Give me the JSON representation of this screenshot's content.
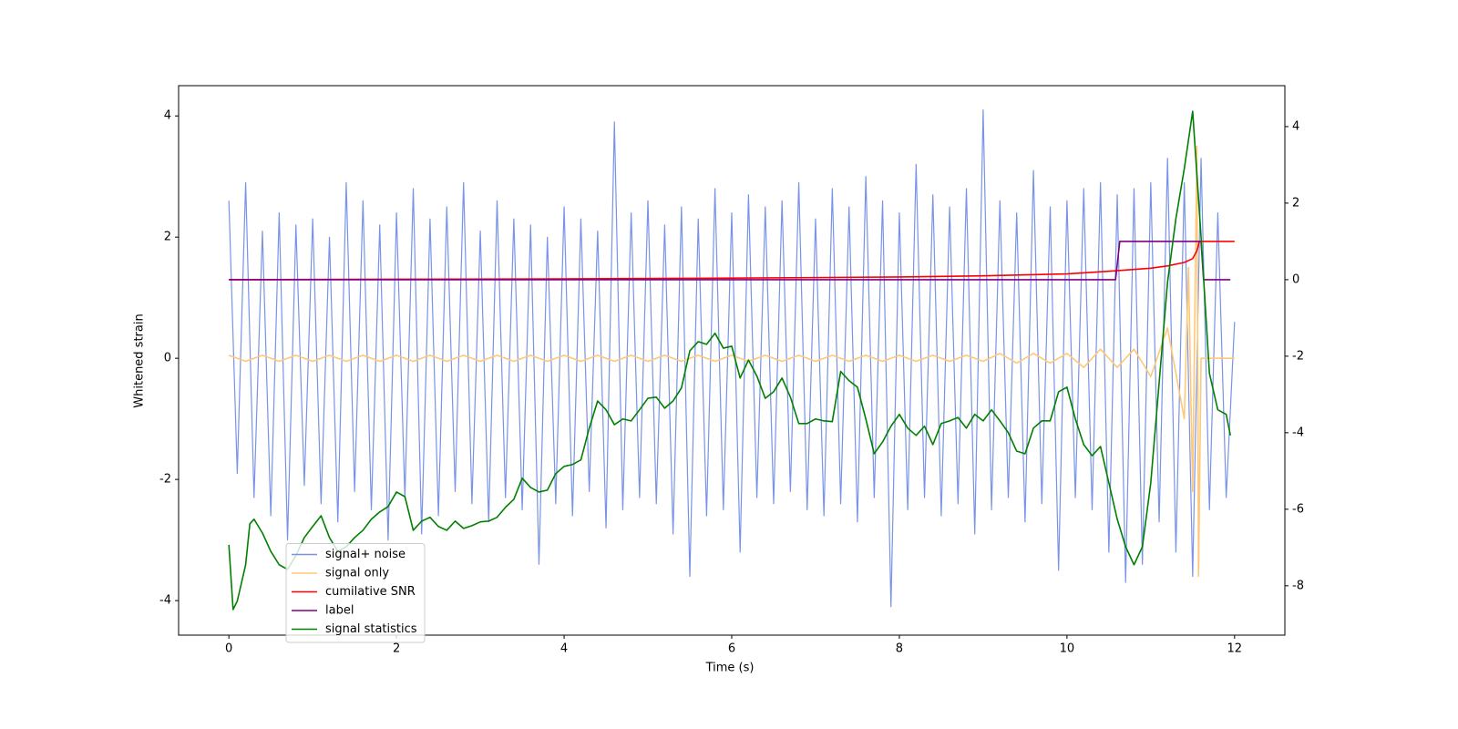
{
  "chart_data": {
    "type": "line",
    "xlabel": "Time (s)",
    "ylabel": "Whitened strain",
    "xlim": [
      -0.6,
      12.6
    ],
    "ylim": [
      -4.57,
      4.5
    ],
    "y2lim": [
      -9.29,
      5.07
    ],
    "xticks": [
      0,
      2,
      4,
      6,
      8,
      10,
      12
    ],
    "yticks": [
      -4,
      -2,
      0,
      2,
      4
    ],
    "y2ticks": [
      -8,
      -6,
      -4,
      -2,
      0,
      2,
      4
    ],
    "legend": "lower left",
    "series": [
      {
        "name": "signal+ noise",
        "color": "#7893e8",
        "x": [
          0,
          0.1,
          0.2,
          0.3,
          0.4,
          0.5,
          0.6,
          0.7,
          0.8,
          0.9,
          1,
          1.1,
          1.2,
          1.3,
          1.4,
          1.5,
          1.6,
          1.7,
          1.8,
          1.9,
          2,
          2.1,
          2.2,
          2.3,
          2.4,
          2.5,
          2.6,
          2.7,
          2.8,
          2.9,
          3,
          3.1,
          3.2,
          3.3,
          3.4,
          3.5,
          3.6,
          3.7,
          3.8,
          3.9,
          4,
          4.1,
          4.2,
          4.3,
          4.4,
          4.5,
          4.6,
          4.7,
          4.8,
          4.9,
          5,
          5.1,
          5.2,
          5.3,
          5.4,
          5.5,
          5.6,
          5.7,
          5.8,
          5.9,
          6,
          6.1,
          6.2,
          6.3,
          6.4,
          6.5,
          6.6,
          6.7,
          6.8,
          6.9,
          7,
          7.1,
          7.2,
          7.3,
          7.4,
          7.5,
          7.6,
          7.7,
          7.8,
          7.9,
          8,
          8.1,
          8.2,
          8.3,
          8.4,
          8.5,
          8.6,
          8.7,
          8.8,
          8.9,
          9,
          9.1,
          9.2,
          9.3,
          9.4,
          9.5,
          9.6,
          9.7,
          9.8,
          9.9,
          10,
          10.1,
          10.2,
          10.3,
          10.4,
          10.5,
          10.6,
          10.7,
          10.8,
          10.9,
          11,
          11.1,
          11.2,
          11.3,
          11.4,
          11.5,
          11.6,
          11.7,
          11.8,
          11.9,
          12
        ],
        "values": [
          2.6,
          -1.9,
          2.9,
          -2.3,
          2.1,
          -2.6,
          2.4,
          -3.0,
          2.2,
          -2.1,
          2.3,
          -2.4,
          2.0,
          -2.7,
          2.9,
          -2.2,
          2.6,
          -2.5,
          2.2,
          -3.0,
          2.4,
          -2.3,
          2.8,
          -2.9,
          2.3,
          -2.6,
          2.5,
          -2.2,
          2.9,
          -2.4,
          2.1,
          -2.7,
          2.6,
          -2.3,
          2.3,
          -2.5,
          2.2,
          -3.4,
          2.0,
          -2.4,
          2.5,
          -2.6,
          2.3,
          -2.2,
          2.1,
          -2.8,
          3.9,
          -2.5,
          2.4,
          -2.3,
          2.6,
          -2.4,
          2.2,
          -2.9,
          2.5,
          -3.6,
          2.3,
          -2.6,
          2.8,
          -2.5,
          2.4,
          -3.2,
          2.7,
          -2.3,
          2.5,
          -2.4,
          2.6,
          -2.2,
          2.9,
          -2.5,
          2.3,
          -2.6,
          2.8,
          -2.4,
          2.5,
          -2.7,
          3.0,
          -2.3,
          2.6,
          -4.1,
          2.4,
          -2.5,
          3.2,
          -2.3,
          2.7,
          -2.6,
          2.5,
          -2.4,
          2.8,
          -2.9,
          4.1,
          -2.5,
          2.6,
          -2.3,
          2.4,
          -2.7,
          3.1,
          -2.4,
          2.5,
          -3.5,
          2.6,
          -2.3,
          2.8,
          -2.5,
          2.9,
          -3.2,
          2.7,
          -3.7,
          2.8,
          -3.4,
          2.9,
          -2.7,
          3.3,
          -3.2,
          2.9,
          -3.6,
          3.3,
          -2.5,
          2.4,
          -2.3,
          0.6
        ]
      },
      {
        "name": "signal only",
        "color": "#ffc878",
        "x": [
          0,
          0.2,
          0.4,
          0.6,
          0.8,
          1,
          1.2,
          1.4,
          1.6,
          1.8,
          2,
          2.2,
          2.4,
          2.6,
          2.8,
          3,
          3.2,
          3.4,
          3.6,
          3.8,
          4,
          4.2,
          4.4,
          4.6,
          4.8,
          5,
          5.2,
          5.4,
          5.6,
          5.8,
          6,
          6.2,
          6.4,
          6.6,
          6.8,
          7,
          7.2,
          7.4,
          7.6,
          7.8,
          8,
          8.2,
          8.4,
          8.6,
          8.8,
          9,
          9.2,
          9.4,
          9.6,
          9.8,
          10,
          10.2,
          10.4,
          10.6,
          10.8,
          11,
          11.2,
          11.4,
          11.45,
          11.5,
          11.55,
          11.57,
          11.6,
          12
        ],
        "values": [
          0.05,
          -0.05,
          0.05,
          -0.05,
          0.05,
          -0.05,
          0.05,
          -0.05,
          0.05,
          -0.05,
          0.05,
          -0.05,
          0.05,
          -0.05,
          0.05,
          -0.05,
          0.05,
          -0.05,
          0.05,
          -0.05,
          0.05,
          -0.05,
          0.05,
          -0.05,
          0.05,
          -0.05,
          0.05,
          -0.05,
          0.05,
          -0.05,
          0.05,
          -0.05,
          0.05,
          -0.05,
          0.05,
          -0.05,
          0.05,
          -0.05,
          0.05,
          -0.05,
          0.05,
          -0.05,
          0.05,
          -0.05,
          0.05,
          -0.05,
          0.08,
          -0.08,
          0.08,
          -0.08,
          0.08,
          -0.15,
          0.15,
          -0.15,
          0.15,
          -0.3,
          0.5,
          -1.0,
          1.5,
          -2.2,
          3.5,
          -3.6,
          0,
          0
        ]
      },
      {
        "name": "cumilative SNR",
        "color": "#ff0000",
        "axis": "y2",
        "x": [
          0,
          2,
          4,
          6,
          8,
          9,
          10,
          10.5,
          11,
          11.2,
          11.4,
          11.5,
          11.55,
          11.58,
          12
        ],
        "values": [
          0,
          0.01,
          0.02,
          0.04,
          0.07,
          0.1,
          0.15,
          0.22,
          0.3,
          0.36,
          0.45,
          0.55,
          0.75,
          1,
          1
        ]
      },
      {
        "name": "label",
        "color": "#800080",
        "axis": "y2",
        "x": [
          0,
          10.58,
          10.63,
          11.6,
          11.63,
          11.95
        ],
        "values": [
          0,
          0,
          1,
          1,
          0,
          0
        ]
      },
      {
        "name": "signal statistics",
        "color": "#008000",
        "axis": "y2",
        "x": [
          0,
          0.05,
          0.1,
          0.2,
          0.25,
          0.3,
          0.4,
          0.5,
          0.6,
          0.7,
          0.8,
          0.9,
          1,
          1.1,
          1.2,
          1.3,
          1.4,
          1.5,
          1.6,
          1.7,
          1.8,
          1.9,
          2,
          2.1,
          2.2,
          2.3,
          2.4,
          2.5,
          2.6,
          2.7,
          2.8,
          2.9,
          3,
          3.1,
          3.2,
          3.3,
          3.4,
          3.5,
          3.6,
          3.7,
          3.8,
          3.9,
          4,
          4.1,
          4.2,
          4.3,
          4.4,
          4.5,
          4.6,
          4.7,
          4.8,
          4.9,
          5,
          5.1,
          5.2,
          5.3,
          5.4,
          5.5,
          5.6,
          5.7,
          5.8,
          5.9,
          6,
          6.1,
          6.2,
          6.3,
          6.4,
          6.5,
          6.6,
          6.7,
          6.8,
          6.9,
          7,
          7.1,
          7.2,
          7.3,
          7.4,
          7.5,
          7.6,
          7.7,
          7.8,
          7.9,
          8,
          8.1,
          8.2,
          8.3,
          8.4,
          8.5,
          8.6,
          8.7,
          8.8,
          8.9,
          9,
          9.1,
          9.2,
          9.3,
          9.4,
          9.5,
          9.6,
          9.7,
          9.8,
          9.9,
          10,
          10.1,
          10.2,
          10.3,
          10.4,
          10.5,
          10.6,
          10.7,
          10.8,
          10.9,
          11,
          11.1,
          11.2,
          11.3,
          11.4,
          11.5,
          11.6,
          11.7,
          11.8,
          11.9,
          11.95
        ],
        "values": [
          -6.93,
          -8.62,
          -8.4,
          -7.45,
          -6.38,
          -6.26,
          -6.62,
          -7.1,
          -7.45,
          -7.57,
          -7.21,
          -6.74,
          -6.45,
          -6.17,
          -6.74,
          -7.1,
          -6.98,
          -6.74,
          -6.55,
          -6.26,
          -6.07,
          -5.93,
          -5.55,
          -5.67,
          -6.55,
          -6.31,
          -6.21,
          -6.45,
          -6.55,
          -6.31,
          -6.5,
          -6.43,
          -6.33,
          -6.31,
          -6.21,
          -5.95,
          -5.74,
          -5.19,
          -5.43,
          -5.55,
          -5.5,
          -5.07,
          -4.88,
          -4.83,
          -4.71,
          -3.88,
          -3.17,
          -3.4,
          -3.79,
          -3.64,
          -3.69,
          -3.4,
          -3.1,
          -3.07,
          -3.36,
          -3.17,
          -2.83,
          -1.86,
          -1.62,
          -1.69,
          -1.4,
          -1.79,
          -1.74,
          -2.57,
          -2.1,
          -2.52,
          -3.1,
          -2.93,
          -2.57,
          -3.07,
          -3.76,
          -3.76,
          -3.64,
          -3.69,
          -3.71,
          -2.4,
          -2.64,
          -2.81,
          -3.64,
          -4.55,
          -4.24,
          -3.83,
          -3.52,
          -3.88,
          -4.07,
          -3.83,
          -4.31,
          -3.76,
          -3.69,
          -3.6,
          -3.88,
          -3.52,
          -3.69,
          -3.4,
          -3.69,
          -4.0,
          -4.48,
          -4.55,
          -3.88,
          -3.69,
          -3.69,
          -2.93,
          -2.81,
          -3.64,
          -4.31,
          -4.6,
          -4.36,
          -5.31,
          -6.26,
          -6.98,
          -7.45,
          -6.98,
          -5.31,
          -2.69,
          -0.07,
          1.6,
          2.9,
          4.4,
          1.12,
          -2.45,
          -3.4,
          -3.52,
          -4.07
        ]
      }
    ]
  }
}
